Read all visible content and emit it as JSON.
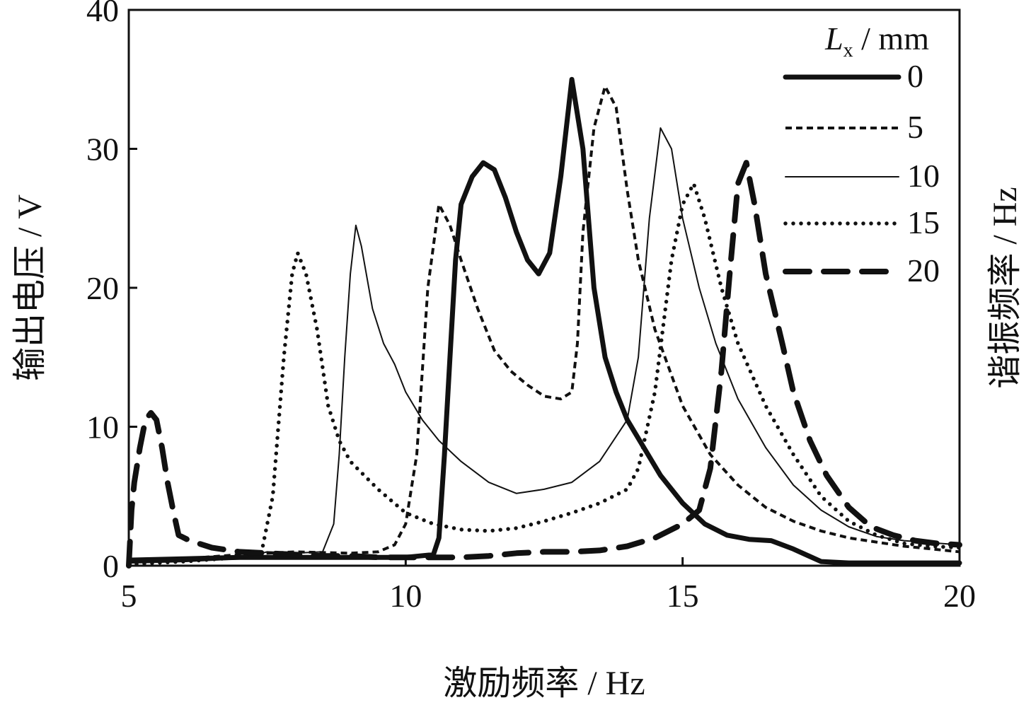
{
  "chart_data": {
    "type": "line",
    "xlabel": "激励频率 / Hz",
    "ylabel": "输出电压 / V",
    "y2label": "谐振频率 / Hz",
    "xlim": [
      5,
      20
    ],
    "ylim": [
      0,
      40
    ],
    "xticks": [
      "5",
      "10",
      "15",
      "20"
    ],
    "yticks": [
      "0",
      "10",
      "20",
      "30",
      "40"
    ],
    "grid": false,
    "legend": {
      "placement": "top-right",
      "title_var": "L",
      "title_sub": "x",
      "title_unit": " / mm"
    },
    "series": [
      {
        "name": "0",
        "style": "solid-thick",
        "points": [
          [
            5.0,
            0.4
          ],
          [
            6.0,
            0.5
          ],
          [
            7.0,
            0.6
          ],
          [
            8.0,
            0.6
          ],
          [
            9.0,
            0.6
          ],
          [
            10.0,
            0.6
          ],
          [
            10.5,
            0.8
          ],
          [
            10.6,
            2.0
          ],
          [
            10.7,
            8.0
          ],
          [
            10.8,
            15.0
          ],
          [
            10.9,
            22.0
          ],
          [
            11.0,
            26.0
          ],
          [
            11.2,
            28.0
          ],
          [
            11.4,
            29.0
          ],
          [
            11.6,
            28.5
          ],
          [
            11.8,
            26.5
          ],
          [
            12.0,
            24.0
          ],
          [
            12.2,
            22.0
          ],
          [
            12.4,
            21.0
          ],
          [
            12.6,
            22.5
          ],
          [
            12.8,
            28.0
          ],
          [
            13.0,
            35.0
          ],
          [
            13.2,
            30.0
          ],
          [
            13.4,
            20.0
          ],
          [
            13.6,
            15.0
          ],
          [
            13.8,
            12.5
          ],
          [
            14.0,
            10.5
          ],
          [
            14.3,
            8.5
          ],
          [
            14.6,
            6.5
          ],
          [
            15.0,
            4.5
          ],
          [
            15.4,
            3.0
          ],
          [
            15.8,
            2.2
          ],
          [
            16.2,
            1.9
          ],
          [
            16.6,
            1.8
          ],
          [
            17.0,
            1.2
          ],
          [
            17.5,
            0.3
          ],
          [
            18.0,
            0.2
          ],
          [
            20.0,
            0.2
          ]
        ]
      },
      {
        "name": "5",
        "style": "dashed",
        "points": [
          [
            5.0,
            0.3
          ],
          [
            6.0,
            0.5
          ],
          [
            7.0,
            0.8
          ],
          [
            8.0,
            1.0
          ],
          [
            9.0,
            0.9
          ],
          [
            9.5,
            1.0
          ],
          [
            9.8,
            1.5
          ],
          [
            10.0,
            3.0
          ],
          [
            10.2,
            8.0
          ],
          [
            10.4,
            20.0
          ],
          [
            10.6,
            26.0
          ],
          [
            10.8,
            24.5
          ],
          [
            11.0,
            22.0
          ],
          [
            11.3,
            18.5
          ],
          [
            11.6,
            15.5
          ],
          [
            11.9,
            14.0
          ],
          [
            12.2,
            13.0
          ],
          [
            12.5,
            12.2
          ],
          [
            12.8,
            12.0
          ],
          [
            13.0,
            12.5
          ],
          [
            13.1,
            16.0
          ],
          [
            13.2,
            24.0
          ],
          [
            13.4,
            31.5
          ],
          [
            13.6,
            34.5
          ],
          [
            13.8,
            33.0
          ],
          [
            14.0,
            27.0
          ],
          [
            14.2,
            22.0
          ],
          [
            14.5,
            17.0
          ],
          [
            15.0,
            11.5
          ],
          [
            15.5,
            8.0
          ],
          [
            16.0,
            5.8
          ],
          [
            16.5,
            4.2
          ],
          [
            17.0,
            3.2
          ],
          [
            17.5,
            2.5
          ],
          [
            18.0,
            2.0
          ],
          [
            18.5,
            1.7
          ],
          [
            19.0,
            1.4
          ],
          [
            19.5,
            1.2
          ],
          [
            20.0,
            1.0
          ]
        ]
      },
      {
        "name": "10",
        "style": "solid-thin",
        "points": [
          [
            5.0,
            0.2
          ],
          [
            6.0,
            0.3
          ],
          [
            7.0,
            0.5
          ],
          [
            7.5,
            1.0
          ],
          [
            8.0,
            0.9
          ],
          [
            8.5,
            1.0
          ],
          [
            8.7,
            3.0
          ],
          [
            8.8,
            8.0
          ],
          [
            8.9,
            15.0
          ],
          [
            9.0,
            21.0
          ],
          [
            9.1,
            24.5
          ],
          [
            9.2,
            23.0
          ],
          [
            9.4,
            18.5
          ],
          [
            9.6,
            16.0
          ],
          [
            9.8,
            14.5
          ],
          [
            10.0,
            12.5
          ],
          [
            10.3,
            10.5
          ],
          [
            10.6,
            9.0
          ],
          [
            11.0,
            7.5
          ],
          [
            11.5,
            6.0
          ],
          [
            12.0,
            5.2
          ],
          [
            12.5,
            5.5
          ],
          [
            13.0,
            6.0
          ],
          [
            13.5,
            7.5
          ],
          [
            14.0,
            10.5
          ],
          [
            14.2,
            15.0
          ],
          [
            14.4,
            25.0
          ],
          [
            14.6,
            31.5
          ],
          [
            14.8,
            30.0
          ],
          [
            15.0,
            25.0
          ],
          [
            15.3,
            20.0
          ],
          [
            15.6,
            16.0
          ],
          [
            16.0,
            12.0
          ],
          [
            16.5,
            8.5
          ],
          [
            17.0,
            5.8
          ],
          [
            17.5,
            4.0
          ],
          [
            18.0,
            2.8
          ],
          [
            18.5,
            2.1
          ],
          [
            19.0,
            1.8
          ],
          [
            20.0,
            1.5
          ]
        ]
      },
      {
        "name": "15",
        "style": "dotted",
        "points": [
          [
            5.0,
            0.1
          ],
          [
            6.0,
            0.3
          ],
          [
            7.0,
            0.6
          ],
          [
            7.4,
            1.0
          ],
          [
            7.6,
            5.0
          ],
          [
            7.8,
            15.0
          ],
          [
            7.95,
            21.0
          ],
          [
            8.05,
            22.5
          ],
          [
            8.2,
            21.0
          ],
          [
            8.4,
            17.0
          ],
          [
            8.6,
            11.5
          ],
          [
            8.8,
            9.0
          ],
          [
            9.0,
            7.5
          ],
          [
            9.5,
            5.5
          ],
          [
            10.0,
            3.8
          ],
          [
            10.5,
            3.0
          ],
          [
            11.0,
            2.6
          ],
          [
            11.5,
            2.5
          ],
          [
            12.0,
            2.7
          ],
          [
            12.5,
            3.2
          ],
          [
            13.0,
            3.8
          ],
          [
            13.5,
            4.5
          ],
          [
            14.0,
            5.5
          ],
          [
            14.2,
            7.0
          ],
          [
            14.5,
            12.5
          ],
          [
            14.8,
            22.0
          ],
          [
            15.0,
            26.0
          ],
          [
            15.2,
            27.5
          ],
          [
            15.4,
            25.0
          ],
          [
            15.7,
            20.0
          ],
          [
            16.0,
            16.0
          ],
          [
            16.5,
            11.5
          ],
          [
            17.0,
            8.0
          ],
          [
            17.5,
            5.0
          ],
          [
            18.0,
            3.2
          ],
          [
            18.5,
            2.2
          ],
          [
            19.0,
            1.6
          ],
          [
            19.5,
            1.4
          ],
          [
            20.0,
            1.3
          ]
        ]
      },
      {
        "name": "20",
        "style": "long-dash",
        "points": [
          [
            5.0,
            0.0
          ],
          [
            5.05,
            4.0
          ],
          [
            5.1,
            6.0
          ],
          [
            5.2,
            8.5
          ],
          [
            5.3,
            10.5
          ],
          [
            5.4,
            11.0
          ],
          [
            5.5,
            10.5
          ],
          [
            5.6,
            8.5
          ],
          [
            5.7,
            6.0
          ],
          [
            5.8,
            4.0
          ],
          [
            5.9,
            2.2
          ],
          [
            6.1,
            1.8
          ],
          [
            6.5,
            1.3
          ],
          [
            7.0,
            1.0
          ],
          [
            7.5,
            0.9
          ],
          [
            8.0,
            0.8
          ],
          [
            8.5,
            0.7
          ],
          [
            9.0,
            0.7
          ],
          [
            9.5,
            0.6
          ],
          [
            10.0,
            0.6
          ],
          [
            10.5,
            0.6
          ],
          [
            11.0,
            0.6
          ],
          [
            11.5,
            0.7
          ],
          [
            12.0,
            0.9
          ],
          [
            12.5,
            1.0
          ],
          [
            13.0,
            1.0
          ],
          [
            13.5,
            1.1
          ],
          [
            14.0,
            1.4
          ],
          [
            14.5,
            2.0
          ],
          [
            15.0,
            3.0
          ],
          [
            15.3,
            4.0
          ],
          [
            15.5,
            7.0
          ],
          [
            15.7,
            14.0
          ],
          [
            15.85,
            21.0
          ],
          [
            16.0,
            27.5
          ],
          [
            16.15,
            29.0
          ],
          [
            16.3,
            26.0
          ],
          [
            16.5,
            21.0
          ],
          [
            16.8,
            16.0
          ],
          [
            17.0,
            12.5
          ],
          [
            17.3,
            9.0
          ],
          [
            17.6,
            6.5
          ],
          [
            18.0,
            4.2
          ],
          [
            18.4,
            2.8
          ],
          [
            18.8,
            2.2
          ],
          [
            19.2,
            1.8
          ],
          [
            19.6,
            1.6
          ],
          [
            20.0,
            1.5
          ]
        ]
      }
    ]
  }
}
